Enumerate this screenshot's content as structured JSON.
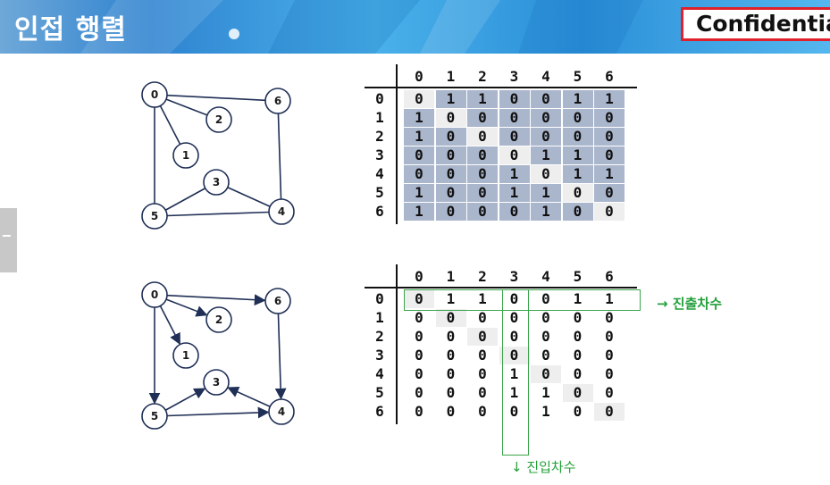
{
  "header": {
    "title": "인접 행렬",
    "confidential_label": "Confidentia",
    "colors": {
      "banner": "#2f83d0",
      "confidential_border": "#e0202a",
      "highlight": "#3aa44a",
      "cell_shade": "#aab6cc",
      "diag_shade": "#eeeeee"
    }
  },
  "graphs": {
    "undirected": {
      "nodes": [
        "0",
        "1",
        "2",
        "3",
        "4",
        "5",
        "6"
      ],
      "edges": [
        [
          "0",
          "6"
        ],
        [
          "0",
          "2"
        ],
        [
          "0",
          "1"
        ],
        [
          "0",
          "5"
        ],
        [
          "6",
          "4"
        ],
        [
          "3",
          "5"
        ],
        [
          "3",
          "4"
        ],
        [
          "5",
          "4"
        ]
      ]
    },
    "directed": {
      "nodes": [
        "0",
        "1",
        "2",
        "3",
        "4",
        "5",
        "6"
      ],
      "edges": [
        [
          "0",
          "6"
        ],
        [
          "0",
          "2"
        ],
        [
          "0",
          "1"
        ],
        [
          "0",
          "5"
        ],
        [
          "6",
          "4"
        ],
        [
          "5",
          "3"
        ],
        [
          "4",
          "3"
        ],
        [
          "5",
          "4"
        ]
      ]
    }
  },
  "matrices": {
    "undirected": {
      "headers": [
        "0",
        "1",
        "2",
        "3",
        "4",
        "5",
        "6"
      ],
      "rows": [
        [
          "0",
          "1",
          "1",
          "0",
          "0",
          "1",
          "1"
        ],
        [
          "1",
          "0",
          "0",
          "0",
          "0",
          "0",
          "0"
        ],
        [
          "1",
          "0",
          "0",
          "0",
          "0",
          "0",
          "0"
        ],
        [
          "0",
          "0",
          "0",
          "0",
          "1",
          "1",
          "0"
        ],
        [
          "0",
          "0",
          "0",
          "1",
          "0",
          "1",
          "1"
        ],
        [
          "1",
          "0",
          "0",
          "1",
          "1",
          "0",
          "0"
        ],
        [
          "1",
          "0",
          "0",
          "0",
          "1",
          "0",
          "0"
        ]
      ]
    },
    "directed": {
      "headers": [
        "0",
        "1",
        "2",
        "3",
        "4",
        "5",
        "6"
      ],
      "rows": [
        [
          "0",
          "1",
          "1",
          "0",
          "0",
          "1",
          "1"
        ],
        [
          "0",
          "0",
          "0",
          "0",
          "0",
          "0",
          "0"
        ],
        [
          "0",
          "0",
          "0",
          "0",
          "0",
          "0",
          "0"
        ],
        [
          "0",
          "0",
          "0",
          "0",
          "0",
          "0",
          "0"
        ],
        [
          "0",
          "0",
          "0",
          "1",
          "0",
          "0",
          "0"
        ],
        [
          "0",
          "0",
          "0",
          "1",
          "1",
          "0",
          "0"
        ],
        [
          "0",
          "0",
          "0",
          "0",
          "1",
          "0",
          "0"
        ]
      ]
    }
  },
  "annotations": {
    "out_degree": "→ 진출차수",
    "in_degree": "↓ 진입차수"
  }
}
